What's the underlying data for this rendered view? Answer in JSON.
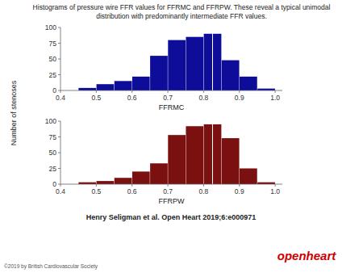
{
  "chart_data": [
    {
      "type": "histogram",
      "title": "Histograms of pressure wire FFR values for FFRMC and FFRPW. These reveal a typical unimodal\ndistribution with predominantly intermediate FFR values.",
      "ylabel": "Number of stenoses",
      "xlabel": "FFRMC",
      "bins": [
        0.45,
        0.5,
        0.55,
        0.6,
        0.65,
        0.7,
        0.75,
        0.8,
        0.85,
        0.9,
        0.95,
        1.0
      ],
      "values": [
        4,
        10,
        15,
        22,
        55,
        80,
        85,
        90,
        48,
        22,
        3
      ],
      "color": "#0d0d99",
      "mean": 0.825,
      "xlim": [
        0.4,
        1.02
      ],
      "xticks": [
        0.4,
        0.5,
        0.6,
        0.7,
        0.8,
        0.9,
        {
          "value": 1.0,
          "label": "1.0"
        }
      ],
      "ylim": [
        0,
        100
      ],
      "yticks": [
        0,
        25,
        50,
        75,
        100
      ]
    },
    {
      "type": "histogram",
      "xlabel": "FFRPW",
      "bins": [
        0.45,
        0.5,
        0.55,
        0.6,
        0.65,
        0.7,
        0.75,
        0.8,
        0.85,
        0.9,
        0.95,
        1.0
      ],
      "values": [
        3,
        5,
        10,
        20,
        33,
        78,
        92,
        95,
        73,
        25,
        3
      ],
      "color": "#7b1010",
      "mean": 0.825,
      "xlim": [
        0.4,
        1.02
      ],
      "xticks": [
        0.4,
        0.5,
        0.6,
        0.7,
        0.8,
        0.9,
        {
          "value": 1.0,
          "label": "1.0"
        }
      ],
      "ylim": [
        0,
        100
      ],
      "yticks": [
        0,
        25,
        50,
        75,
        100
      ],
      "annotations": [
        {
          "text": "Henry Seligman et al. Open Heart 2019;6:e000971"
        },
        {
          "text": "©2019 by British Cardiovascular Society"
        },
        {
          "text": "openheart",
          "color": "#cc0000"
        }
      ]
    }
  ]
}
